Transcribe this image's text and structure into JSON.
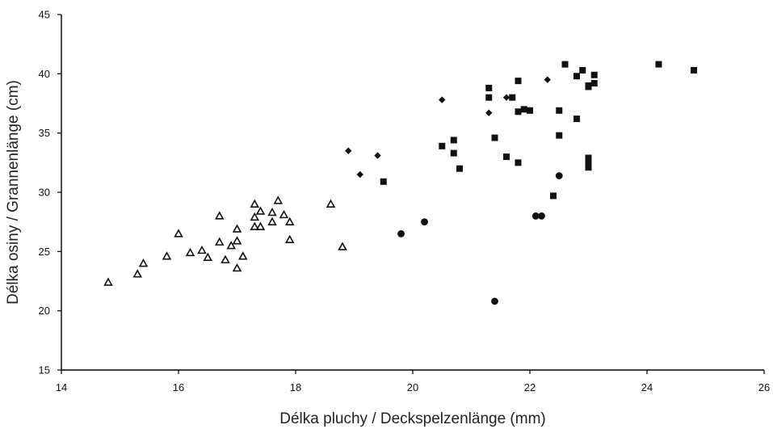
{
  "chart_data": {
    "type": "scatter",
    "xlabel": "Délka pluchy / Deckspelzenlänge (mm)",
    "ylabel": "Délka osiny / Grannenlänge (cm)",
    "xlim": [
      14,
      26
    ],
    "ylim": [
      15,
      45
    ],
    "x_ticks": [
      "14",
      "16",
      "18",
      "20",
      "22",
      "24",
      "26"
    ],
    "y_ticks": [
      "15",
      "20",
      "25",
      "30",
      "35",
      "40",
      "45"
    ],
    "grid": false,
    "legend": "none",
    "colors": {
      "marker": "#111111",
      "axis": "#000000"
    },
    "series": [
      {
        "marker": "open-triangle",
        "points": [
          [
            14.8,
            22.4
          ],
          [
            15.3,
            23.1
          ],
          [
            15.4,
            24.0
          ],
          [
            15.8,
            24.6
          ],
          [
            16.0,
            26.5
          ],
          [
            16.2,
            24.9
          ],
          [
            16.4,
            25.1
          ],
          [
            16.5,
            24.5
          ],
          [
            16.7,
            28.0
          ],
          [
            16.7,
            25.8
          ],
          [
            16.8,
            24.3
          ],
          [
            16.9,
            25.5
          ],
          [
            17.0,
            25.9
          ],
          [
            17.0,
            26.9
          ],
          [
            17.0,
            23.6
          ],
          [
            17.1,
            24.6
          ],
          [
            17.3,
            29.0
          ],
          [
            17.3,
            27.9
          ],
          [
            17.3,
            27.1
          ],
          [
            17.4,
            28.4
          ],
          [
            17.4,
            27.1
          ],
          [
            17.6,
            28.3
          ],
          [
            17.6,
            27.5
          ],
          [
            17.7,
            29.3
          ],
          [
            17.8,
            28.1
          ],
          [
            17.9,
            27.5
          ],
          [
            17.9,
            26.0
          ],
          [
            18.6,
            29.0
          ],
          [
            18.8,
            25.4
          ]
        ]
      },
      {
        "marker": "filled-diamond",
        "points": [
          [
            18.9,
            33.5
          ],
          [
            19.1,
            31.5
          ],
          [
            19.4,
            33.1
          ],
          [
            20.5,
            37.8
          ],
          [
            21.3,
            36.7
          ],
          [
            21.6,
            38.0
          ],
          [
            22.3,
            39.5
          ]
        ]
      },
      {
        "marker": "filled-circle",
        "points": [
          [
            19.8,
            26.5
          ],
          [
            20.2,
            27.5
          ],
          [
            21.4,
            20.8
          ],
          [
            22.1,
            28.0
          ],
          [
            22.2,
            28.0
          ],
          [
            22.5,
            31.4
          ]
        ]
      },
      {
        "marker": "filled-square",
        "points": [
          [
            19.5,
            30.9
          ],
          [
            20.5,
            33.9
          ],
          [
            20.7,
            34.4
          ],
          [
            20.7,
            33.3
          ],
          [
            20.8,
            32.0
          ],
          [
            21.3,
            38.8
          ],
          [
            21.3,
            38.0
          ],
          [
            21.4,
            34.6
          ],
          [
            21.6,
            33.0
          ],
          [
            21.7,
            38.0
          ],
          [
            21.8,
            39.4
          ],
          [
            21.8,
            36.8
          ],
          [
            21.8,
            32.5
          ],
          [
            21.9,
            37.0
          ],
          [
            22.0,
            36.9
          ],
          [
            22.4,
            29.7
          ],
          [
            22.5,
            36.9
          ],
          [
            22.5,
            34.8
          ],
          [
            22.6,
            40.8
          ],
          [
            22.8,
            39.8
          ],
          [
            22.8,
            36.2
          ],
          [
            22.9,
            40.3
          ],
          [
            23.0,
            39.0
          ],
          [
            23.0,
            38.9
          ],
          [
            23.0,
            32.9
          ],
          [
            23.0,
            32.5
          ],
          [
            23.0,
            32.1
          ],
          [
            23.1,
            39.9
          ],
          [
            23.1,
            39.2
          ],
          [
            24.2,
            40.8
          ],
          [
            24.8,
            40.3
          ]
        ]
      }
    ]
  }
}
